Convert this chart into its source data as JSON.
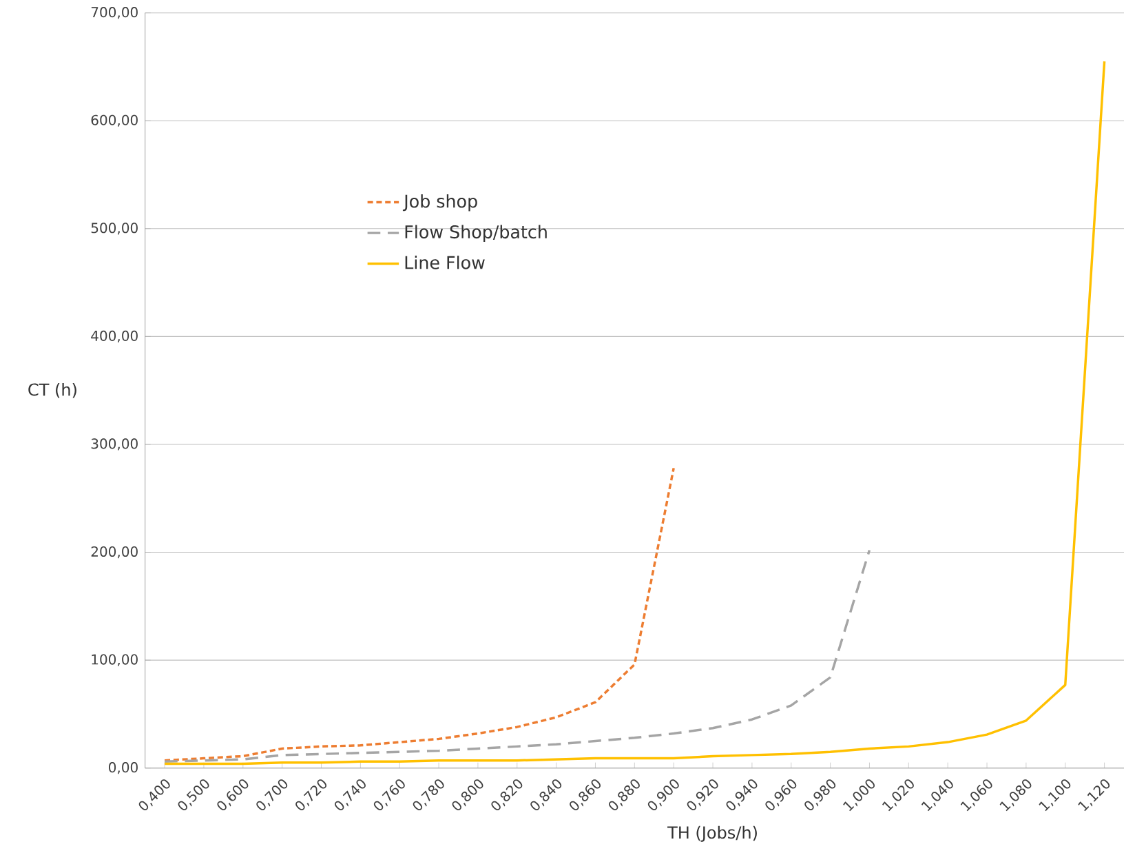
{
  "chart_data": {
    "type": "line",
    "xlabel": "TH (Jobs/h)",
    "ylabel": "CT (h)",
    "categories": [
      "0,400",
      "0,500",
      "0,600",
      "0,700",
      "0,720",
      "0,740",
      "0,760",
      "0,780",
      "0,800",
      "0,820",
      "0,840",
      "0,860",
      "0,880",
      "0,900",
      "0,920",
      "0,940",
      "0,960",
      "0,980",
      "1,000",
      "1,020",
      "1,040",
      "1,060",
      "1,080",
      "1,100",
      "1,120"
    ],
    "series": [
      {
        "name": "Job shop",
        "color": "#ed7d31",
        "line_style": "dotted",
        "values": [
          7,
          9,
          11,
          18,
          20,
          21,
          24,
          27,
          32,
          38,
          47,
          61,
          96,
          278,
          null,
          null,
          null,
          null,
          null,
          null,
          null,
          null,
          null,
          null,
          null
        ]
      },
      {
        "name": "Flow Shop/batch",
        "color": "#a5a5a5",
        "line_style": "dashed",
        "values": [
          6,
          7,
          8,
          12,
          13,
          14,
          15,
          16,
          18,
          20,
          22,
          25,
          28,
          32,
          37,
          45,
          58,
          84,
          202,
          null,
          null,
          null,
          null,
          null,
          null
        ]
      },
      {
        "name": "Line Flow",
        "color": "#ffc000",
        "line_style": "solid",
        "values": [
          4,
          4,
          4,
          5,
          5,
          6,
          6,
          7,
          7,
          7,
          8,
          9,
          9,
          9,
          11,
          12,
          13,
          15,
          18,
          20,
          24,
          31,
          44,
          77,
          655
        ]
      }
    ],
    "ylim": [
      0,
      700
    ],
    "yticks": [
      {
        "value": 0,
        "label": "0,00"
      },
      {
        "value": 100,
        "label": "100,00"
      },
      {
        "value": 200,
        "label": "200,00"
      },
      {
        "value": 300,
        "label": "300,00"
      },
      {
        "value": 400,
        "label": "400,00"
      },
      {
        "value": 500,
        "label": "500,00"
      },
      {
        "value": 600,
        "label": "600,00"
      },
      {
        "value": 700,
        "label": "700,00"
      }
    ],
    "grid": "y",
    "legend": "top",
    "marker": "none"
  }
}
